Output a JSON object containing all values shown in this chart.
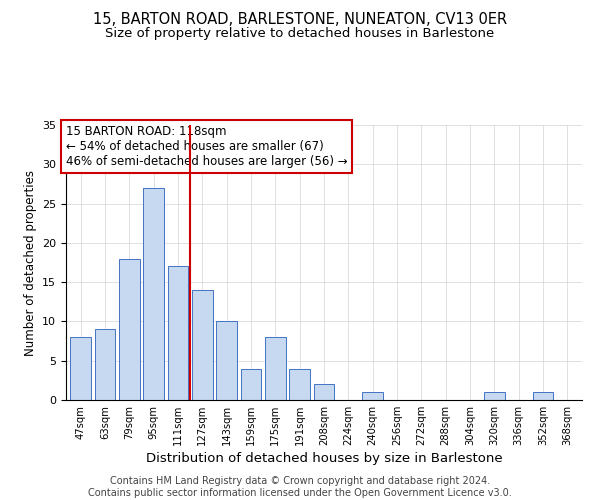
{
  "title": "15, BARTON ROAD, BARLESTONE, NUNEATON, CV13 0ER",
  "subtitle": "Size of property relative to detached houses in Barlestone",
  "xlabel": "Distribution of detached houses by size in Barlestone",
  "ylabel": "Number of detached properties",
  "bar_labels": [
    "47sqm",
    "63sqm",
    "79sqm",
    "95sqm",
    "111sqm",
    "127sqm",
    "143sqm",
    "159sqm",
    "175sqm",
    "191sqm",
    "208sqm",
    "224sqm",
    "240sqm",
    "256sqm",
    "272sqm",
    "288sqm",
    "304sqm",
    "320sqm",
    "336sqm",
    "352sqm",
    "368sqm"
  ],
  "bar_values": [
    8,
    9,
    18,
    27,
    17,
    14,
    10,
    4,
    8,
    4,
    2,
    0,
    1,
    0,
    0,
    0,
    0,
    1,
    0,
    1,
    0
  ],
  "bar_color": "#c6d9f1",
  "bar_edge_color": "#4472c4",
  "vline_x": 4.5,
  "vline_color": "#cc0000",
  "annotation_line1": "15 BARTON ROAD: 118sqm",
  "annotation_line2": "← 54% of detached houses are smaller (67)",
  "annotation_line3": "46% of semi-detached houses are larger (56) →",
  "annotation_box_color": "#ffffff",
  "annotation_box_edge": "#cc0000",
  "ylim": [
    0,
    35
  ],
  "yticks": [
    0,
    5,
    10,
    15,
    20,
    25,
    30,
    35
  ],
  "footer": "Contains HM Land Registry data © Crown copyright and database right 2024.\nContains public sector information licensed under the Open Government Licence v3.0.",
  "title_fontsize": 10.5,
  "subtitle_fontsize": 9.5,
  "xlabel_fontsize": 9.5,
  "ylabel_fontsize": 8.5,
  "annotation_fontsize": 8.5,
  "footer_fontsize": 7
}
